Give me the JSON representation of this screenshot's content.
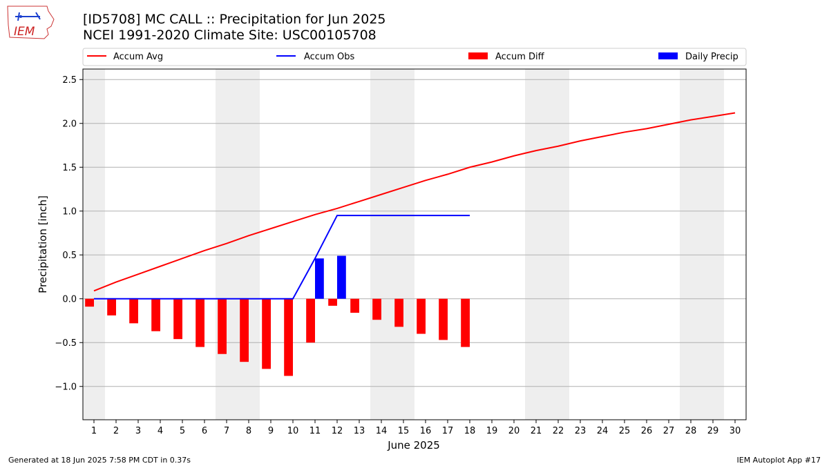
{
  "header": {
    "title_line1": "[ID5708] MC CALL :: Precipitation for Jun 2025",
    "title_line2": "NCEI 1991-2020 Climate Site: USC00105708"
  },
  "logo": {
    "text": "IEM"
  },
  "footer": {
    "left": "Generated at 18 Jun 2025 7:58 PM CDT in 0.37s",
    "right": "IEM Autoplot App #17"
  },
  "colors": {
    "avg": "#ff0000",
    "obs": "#0000ff",
    "diff": "#ff0000",
    "daily": "#0000ff",
    "weekend": "#eeeeee",
    "grid": "#b0b0b0"
  },
  "chart_data": {
    "type": "bar",
    "xlabel": "June 2025",
    "ylabel": "Precipitation [inch]",
    "xlim": [
      0.5,
      30.5
    ],
    "ylim": [
      -1.38,
      2.62
    ],
    "yticks": [
      -1.0,
      -0.5,
      0.0,
      0.5,
      1.0,
      1.5,
      2.0,
      2.5
    ],
    "ytick_labels": [
      "−1.0",
      "−0.5",
      "0.0",
      "0.5",
      "1.0",
      "1.5",
      "2.0",
      "2.5"
    ],
    "x_tick_labels": [
      "1",
      "2",
      "3",
      "4",
      "5",
      "6",
      "7",
      "8",
      "9",
      "10",
      "11",
      "12",
      "13",
      "14",
      "15",
      "16",
      "17",
      "18",
      "19",
      "20",
      "21",
      "22",
      "23",
      "24",
      "25",
      "26",
      "27",
      "28",
      "29",
      "30"
    ],
    "grid": "horizontal",
    "legend_position": "top",
    "weekend_bands": [
      [
        0.5,
        1.5
      ],
      [
        6.5,
        8.5
      ],
      [
        13.5,
        15.5
      ],
      [
        20.5,
        22.5
      ],
      [
        27.5,
        29.5
      ]
    ],
    "legend": [
      "Accum Avg",
      "Accum Obs",
      "Accum Diff",
      "Daily Precip"
    ],
    "series": [
      {
        "name": "Accum Avg",
        "kind": "line",
        "x": [
          1,
          2,
          3,
          4,
          5,
          6,
          7,
          8,
          9,
          10,
          11,
          12,
          13,
          14,
          15,
          16,
          17,
          18,
          19,
          20,
          21,
          22,
          23,
          24,
          25,
          26,
          27,
          28,
          29,
          30
        ],
        "values": [
          0.09,
          0.19,
          0.28,
          0.37,
          0.46,
          0.55,
          0.63,
          0.72,
          0.8,
          0.88,
          0.96,
          1.03,
          1.11,
          1.19,
          1.27,
          1.35,
          1.42,
          1.5,
          1.56,
          1.63,
          1.69,
          1.74,
          1.8,
          1.85,
          1.9,
          1.94,
          1.99,
          2.04,
          2.08,
          2.12
        ]
      },
      {
        "name": "Accum Obs",
        "kind": "line",
        "x": [
          1,
          2,
          3,
          4,
          5,
          6,
          7,
          8,
          9,
          10,
          11,
          12,
          13,
          14,
          15,
          16,
          17,
          18
        ],
        "values": [
          0,
          0,
          0,
          0,
          0,
          0,
          0,
          0,
          0,
          0,
          0.46,
          0.95,
          0.95,
          0.95,
          0.95,
          0.95,
          0.95,
          0.95
        ]
      },
      {
        "name": "Accum Diff",
        "kind": "bar",
        "x": [
          1,
          2,
          3,
          4,
          5,
          6,
          7,
          8,
          9,
          10,
          11,
          12,
          13,
          14,
          15,
          16,
          17,
          18
        ],
        "values": [
          -0.09,
          -0.19,
          -0.28,
          -0.37,
          -0.46,
          -0.55,
          -0.63,
          -0.72,
          -0.8,
          -0.88,
          -0.5,
          -0.08,
          -0.16,
          -0.24,
          -0.32,
          -0.4,
          -0.47,
          -0.55
        ]
      },
      {
        "name": "Daily Precip",
        "kind": "bar",
        "x": [
          11,
          12
        ],
        "values": [
          0.46,
          0.49
        ]
      }
    ]
  }
}
